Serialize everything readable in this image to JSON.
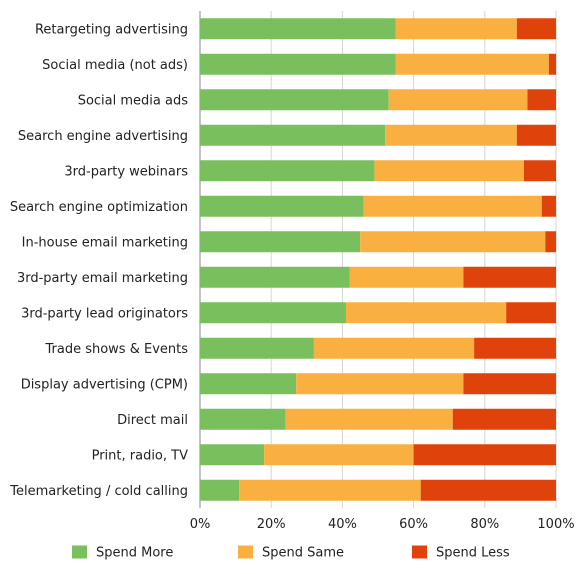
{
  "chart_data": {
    "type": "bar",
    "orientation": "horizontal",
    "stacked": true,
    "categories": [
      "Retargeting advertising",
      "Social media (not ads)",
      "Social media ads",
      "Search engine advertising",
      "3rd-party webinars",
      "Search engine optimization",
      "In-house email marketing",
      "3rd-party email marketing",
      "3rd-party lead originators",
      "Trade shows & Events",
      "Display advertising (CPM)",
      "Direct mail",
      "Print, radio, TV",
      "Telemarketing / cold calling"
    ],
    "series": [
      {
        "name": "Spend More",
        "color": "#7abf5e",
        "values": [
          55,
          55,
          53,
          52,
          49,
          46,
          45,
          42,
          41,
          32,
          27,
          24,
          18,
          11
        ]
      },
      {
        "name": "Spend Same",
        "color": "#f9b040",
        "values": [
          34,
          43,
          39,
          37,
          42,
          50,
          52,
          32,
          45,
          45,
          47,
          47,
          42,
          51
        ]
      },
      {
        "name": "Spend Less",
        "color": "#e0420c",
        "values": [
          11,
          2,
          8,
          11,
          9,
          4,
          3,
          26,
          14,
          23,
          26,
          29,
          40,
          38
        ]
      }
    ],
    "xlim": [
      0,
      100
    ],
    "x_ticks": [
      "0%",
      "20%",
      "40%",
      "60%",
      "80%",
      "100%"
    ],
    "grid": true,
    "legend_position": "bottom"
  }
}
